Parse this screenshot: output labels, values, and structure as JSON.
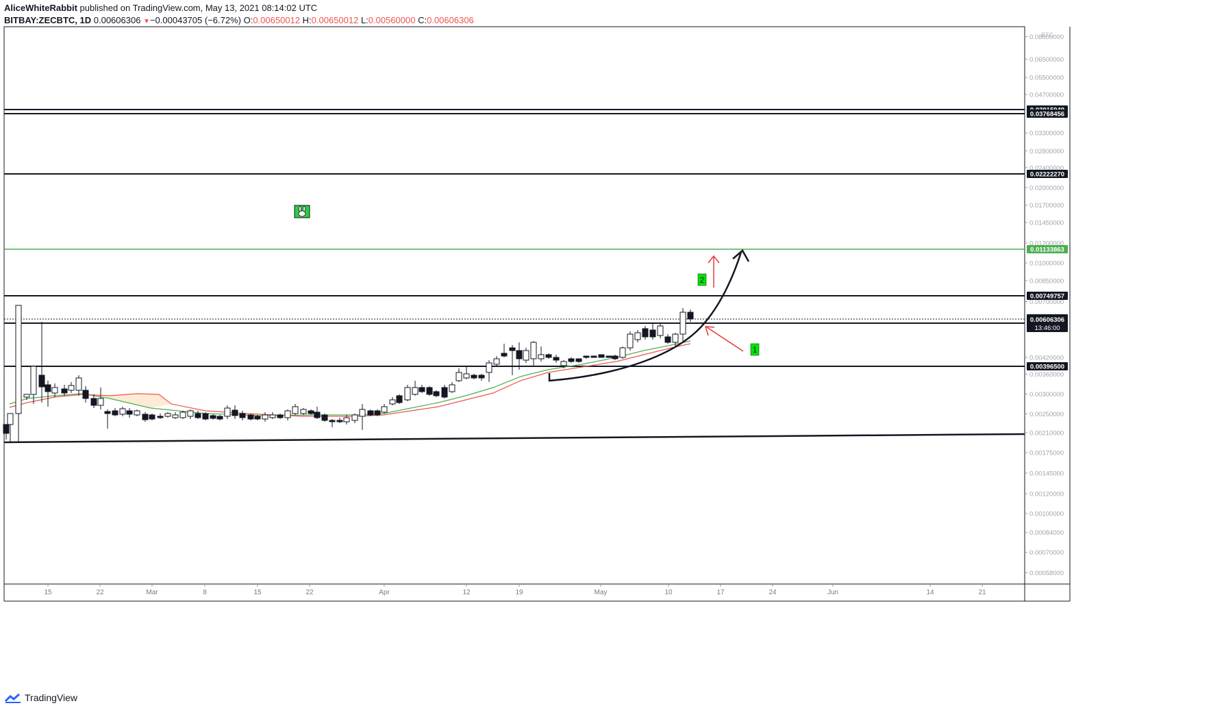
{
  "header": {
    "author": "AliceWhiteRabbit",
    "published": "published on TradingView.com, May 13, 2021 08:14:02 UTC",
    "symbol": "BITBAY:ZECBTC, 1D",
    "last": "0.00606306",
    "change": "−0.00043705 (−6.72%)",
    "o_label": "O:",
    "o_val": "0.00650012",
    "h_label": "H:",
    "h_val": "0.00650012",
    "l_label": "L:",
    "l_val": "0.00560000",
    "c_label": "C:",
    "c_val": "0.00606306"
  },
  "footer": {
    "brand": "TradingView"
  },
  "colors": {
    "up": "#ffffff",
    "down": "#131722",
    "ema_fast": "#ef5350",
    "ema_slow": "#4caf50",
    "green_level": "#4caf50",
    "arrow": "#e53935",
    "badge": "#00e600"
  },
  "chart_data": {
    "type": "candlestick",
    "interval": "1D",
    "y_scale": "log",
    "currency": "BTC",
    "x_tick_labels": [
      "15",
      "22",
      "Mar",
      "8",
      "15",
      "22",
      "Apr",
      "12",
      "19",
      "May",
      "10",
      "17",
      "24",
      "Jun",
      "14",
      "21"
    ],
    "y_tick_labels": [
      "0.08000000",
      "0.06500000",
      "0.05500000",
      "0.04700000",
      "0.03300000",
      "0.02800000",
      "0.02400000",
      "0.02000000",
      "0.01700000",
      "0.01450000",
      "0.01200000",
      "0.01000000",
      "0.00850000",
      "0.00700000",
      "0.00420000",
      "0.00360000",
      "0.00300000",
      "0.00250000",
      "0.00210000",
      "0.00175000",
      "0.00145000",
      "0.00120000",
      "0.00100000",
      "0.00084000",
      "0.00070000",
      "0.00058000"
    ],
    "horizontal_levels": [
      {
        "value": "0.03915949",
        "color": "black"
      },
      {
        "value": "0.03768456",
        "color": "black"
      },
      {
        "value": "0.02222270",
        "color": "black"
      },
      {
        "value": "0.01133863",
        "color": "green"
      },
      {
        "value": "0.00749757",
        "color": "black"
      },
      {
        "value": "0.00581803",
        "color": "black"
      },
      {
        "value": "0.00396500",
        "color": "black"
      }
    ],
    "last_price": "0.00606306",
    "countdown": "13:46:00",
    "annotations": [
      "1",
      "2"
    ]
  }
}
